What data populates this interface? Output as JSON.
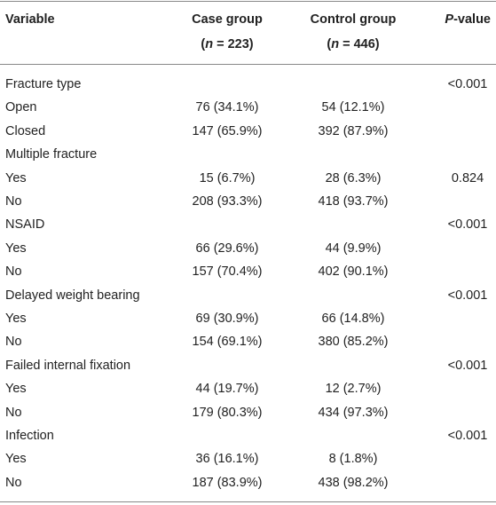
{
  "header": {
    "variable": "Variable",
    "case_group": {
      "name": "Case group",
      "n": [
        "(",
        "n",
        " = 223)"
      ]
    },
    "control_group": {
      "name": "Control group",
      "n": [
        "(",
        "n",
        " = 446)"
      ]
    },
    "p_value": [
      "P",
      "-value"
    ]
  },
  "table": {
    "rows": [
      [
        "Fracture type",
        null,
        null,
        "<0.001"
      ],
      [
        "Open",
        "76 (34.1%)",
        "54 (12.1%)",
        null
      ],
      [
        "Closed",
        "147 (65.9%)",
        "392 (87.9%)",
        null
      ],
      [
        "Multiple fracture",
        null,
        null,
        null
      ],
      [
        "Yes",
        "15 (6.7%)",
        "28 (6.3%)",
        "0.824"
      ],
      [
        "No",
        "208 (93.3%)",
        "418 (93.7%)",
        null
      ],
      [
        "NSAID",
        null,
        null,
        "<0.001"
      ],
      [
        "Yes",
        "66 (29.6%)",
        "44 (9.9%)",
        null
      ],
      [
        "No",
        "157 (70.4%)",
        "402 (90.1%)",
        null
      ],
      [
        "Delayed weight bearing",
        null,
        null,
        "<0.001"
      ],
      [
        "Yes",
        "69 (30.9%)",
        "66 (14.8%)",
        null
      ],
      [
        "No",
        "154 (69.1%)",
        "380 (85.2%)",
        null
      ],
      [
        "Failed internal fixation",
        null,
        null,
        "<0.001"
      ],
      [
        "Yes",
        "44 (19.7%)",
        "12 (2.7%)",
        null
      ],
      [
        "No",
        "179 (80.3%)",
        "434 (97.3%)",
        null
      ],
      [
        "Infection",
        null,
        null,
        "<0.001"
      ],
      [
        "Yes",
        "36 (16.1%)",
        "8 (1.8%)",
        null
      ],
      [
        "No",
        "187 (83.9%)",
        "438 (98.2%)",
        null
      ]
    ]
  }
}
